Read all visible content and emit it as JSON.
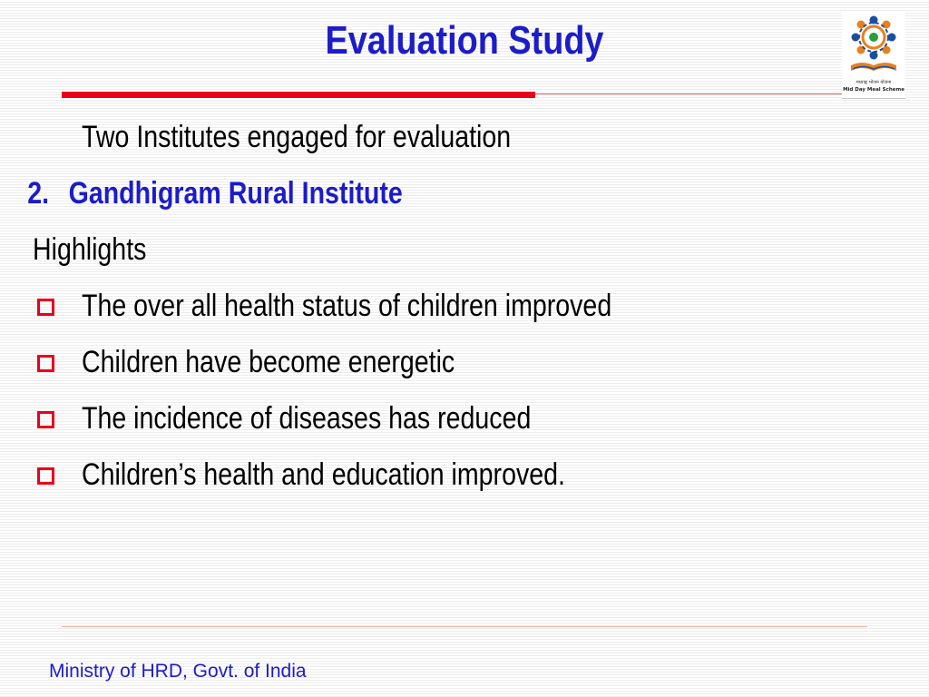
{
  "slide": {
    "title": "Evaluation Study",
    "intro": "Two Institutes engaged for evaluation",
    "numbered_item": {
      "number": "2.",
      "text": "Gandhigram Rural Institute"
    },
    "heading": "Highlights",
    "bullets": [
      "The over all health status of children improved",
      "Children have become energetic",
      "The incidence of diseases has reduced",
      "Children’s health and education improved."
    ],
    "footer": "Ministry of HRD, Govt. of India"
  },
  "logo": {
    "caption_hindi": "मध्याह्न भोजन योजना",
    "caption_english": "Mid Day Meal Scheme",
    "icon": "mid-day-meal-scheme-logo"
  },
  "colors": {
    "title": "#1c1cc8",
    "accent_red": "#e8001c",
    "footer": "#1c1cc8"
  }
}
